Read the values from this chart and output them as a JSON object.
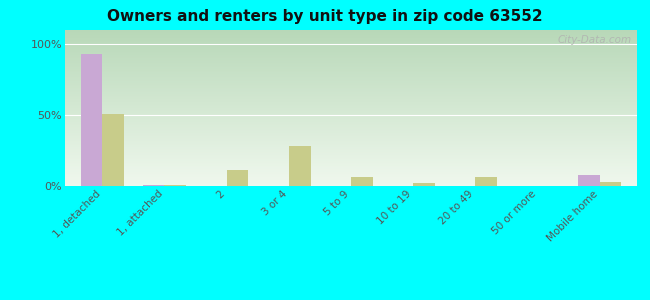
{
  "title": "Owners and renters by unit type in zip code 63552",
  "categories": [
    "1, detached",
    "1, attached",
    "2",
    "3 or 4",
    "5 to 9",
    "10 to 19",
    "20 to 49",
    "50 or more",
    "Mobile home"
  ],
  "owner_values": [
    93,
    1,
    0,
    0,
    0,
    0,
    0,
    0,
    8
  ],
  "renter_values": [
    51,
    1,
    11,
    28,
    6,
    2,
    6,
    0,
    3
  ],
  "owner_color": "#c9a8d4",
  "renter_color": "#c8cc8a",
  "outer_bg": "#00ffff",
  "yticks": [
    0,
    50,
    100
  ],
  "ylabels": [
    "0%",
    "50%",
    "100%"
  ],
  "ylim": [
    0,
    110
  ],
  "bar_width": 0.35,
  "watermark": "City-Data.com",
  "grad_top": "#b8d8b8",
  "grad_bottom": "#f0f8ee"
}
